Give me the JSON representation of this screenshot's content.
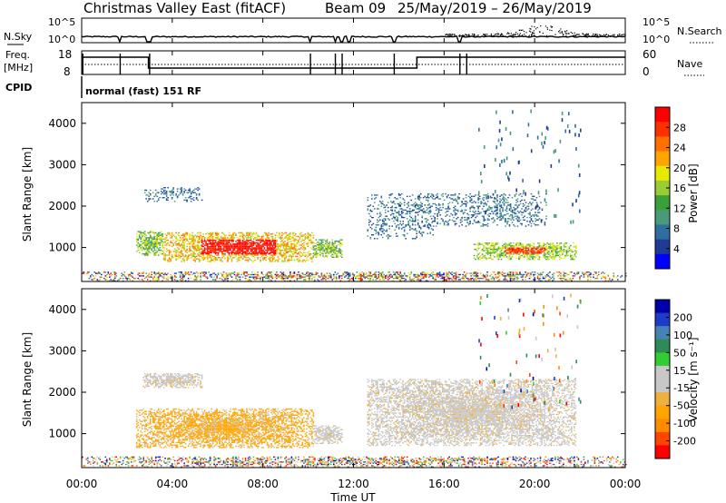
{
  "header": {
    "title": "Christmas Valley East (fitACF)",
    "beam": "Beam 09",
    "dates": "25/May/2019 – 26/May/2019"
  },
  "top_panels": {
    "nsky_label": "N.Sky",
    "nsky_ticks": [
      "10^5",
      "10^0"
    ],
    "nsearch_label": "N.Search",
    "nsearch_ticks": [
      "10^5",
      "10^0"
    ],
    "freq_label": "Freq.",
    "freq_unit": "[MHz]",
    "freq_ticks": [
      "18",
      "8"
    ],
    "nave_label": "Nave",
    "nave_ticks": [
      "60",
      "0"
    ],
    "cpid_label": "CPID",
    "cpid_text": "normal (fast) 151 RF"
  },
  "x_axis": {
    "ticks": [
      "00:00",
      "04:00",
      "08:00",
      "12:00",
      "16:00",
      "20:00",
      "00:00"
    ],
    "label": "Time UT"
  },
  "colorbars": {
    "power": {
      "label": "Power [dB]",
      "ticks": [
        "28",
        "24",
        "20",
        "16",
        "12",
        "8",
        "4"
      ],
      "colors": [
        "#0000ff",
        "#1e3c96",
        "#2f6fa0",
        "#4a9a7a",
        "#3aa03a",
        "#9acd32",
        "#e8e800",
        "#ffa500",
        "#ff7000",
        "#ff3000",
        "#ff0000"
      ]
    },
    "velocity": {
      "label": "Velocity [m s⁻¹]",
      "ticks": [
        "200",
        "100",
        "50",
        "15",
        "-15",
        "-50",
        "-100",
        "-200"
      ],
      "colors": [
        "#ff0000",
        "#ff4500",
        "#ff8c00",
        "#ffa500",
        "#f0b040",
        "#c8c8c8",
        "#c8c8c8",
        "#32cd32",
        "#2e8b57",
        "#4682b4",
        "#1e3cc8",
        "#0000aa"
      ]
    }
  },
  "chart_data": [
    {
      "type": "heatmap",
      "name": "power",
      "ylabel": "Slant Range [km]",
      "xlim": [
        0,
        24
      ],
      "ylim": [
        180,
        4500
      ],
      "yticks": [
        "1000",
        "2000",
        "3000",
        "4000"
      ],
      "blobs": [
        {
          "t0": 3.6,
          "t1": 10.2,
          "r0": 650,
          "r1": 1350,
          "level": "strong"
        },
        {
          "t0": 2.4,
          "t1": 3.6,
          "r0": 800,
          "r1": 1400,
          "level": "medium"
        },
        {
          "t0": 10.2,
          "t1": 11.5,
          "r0": 750,
          "r1": 1200,
          "level": "medium"
        },
        {
          "t0": 2.7,
          "t1": 5.3,
          "r0": 2100,
          "r1": 2450,
          "level": "weak"
        },
        {
          "t0": 12.6,
          "t1": 15.5,
          "r0": 1200,
          "r1": 2300,
          "level": "weak"
        },
        {
          "t0": 15.2,
          "t1": 20.5,
          "r0": 1500,
          "r1": 2300,
          "level": "weak"
        },
        {
          "t0": 17.3,
          "t1": 21.8,
          "r0": 700,
          "r1": 1100,
          "level": "strong-medium"
        },
        {
          "t0": 0.0,
          "t1": 24.0,
          "r0": 180,
          "r1": 400,
          "level": "mixed"
        }
      ]
    },
    {
      "type": "heatmap",
      "name": "velocity",
      "ylabel": "Slant Range [km]",
      "xlim": [
        0,
        24
      ],
      "ylim": [
        180,
        4500
      ],
      "yticks": [
        "1000",
        "2000",
        "3000",
        "4000"
      ],
      "blobs": [
        {
          "t0": 2.4,
          "t1": 10.2,
          "r0": 650,
          "r1": 1600,
          "velocity": "-15 to -50"
        },
        {
          "t0": 10.2,
          "t1": 11.5,
          "r0": 750,
          "r1": 1200,
          "velocity": "-15 to 15"
        },
        {
          "t0": 2.7,
          "t1": 5.3,
          "r0": 2100,
          "r1": 2450,
          "velocity": "-15 to 15"
        },
        {
          "t0": 12.6,
          "t1": 21.8,
          "r0": 700,
          "r1": 2300,
          "velocity": "-15 to 15"
        },
        {
          "t0": 0.0,
          "t1": 24.0,
          "r0": 180,
          "r1": 450,
          "velocity": "mixed"
        }
      ]
    }
  ]
}
